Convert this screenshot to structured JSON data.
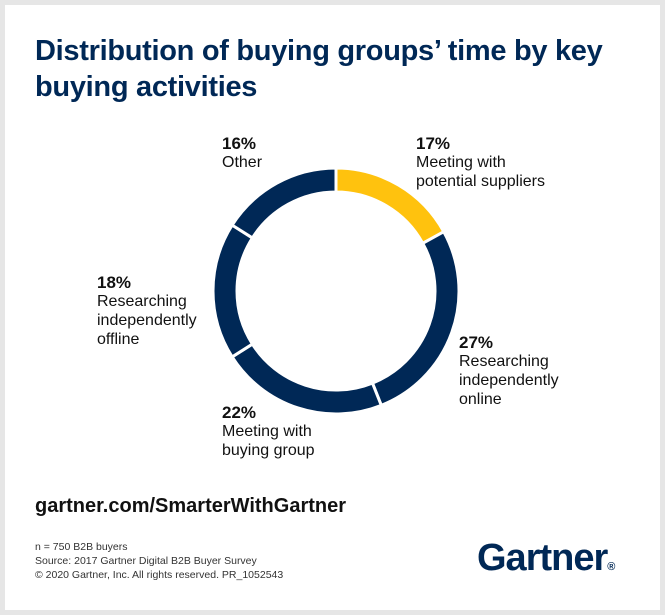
{
  "chart_data": {
    "type": "donut",
    "title": "Distribution of buying groups’ time by key buying activities",
    "categories": [
      "Meeting with potential suppliers",
      "Researching independently online",
      "Meeting with buying group",
      "Researching independently offline",
      "Other"
    ],
    "values": [
      17,
      27,
      22,
      18,
      16
    ],
    "value_labels": [
      "17%",
      "27%",
      "22%",
      "18%",
      "16%"
    ],
    "colors": [
      "#ffc20e",
      "#002856",
      "#002856",
      "#002856",
      "#002856"
    ]
  },
  "url": "gartner.com/SmarterWithGartner",
  "notes": [
    "n = 750 B2B buyers",
    "Source: 2017 Gartner Digital B2B Buyer Survey",
    "© 2020 Gartner, Inc. All rights reserved. PR_1052543"
  ],
  "logo": {
    "text": "Gartner",
    "mark": "®"
  }
}
